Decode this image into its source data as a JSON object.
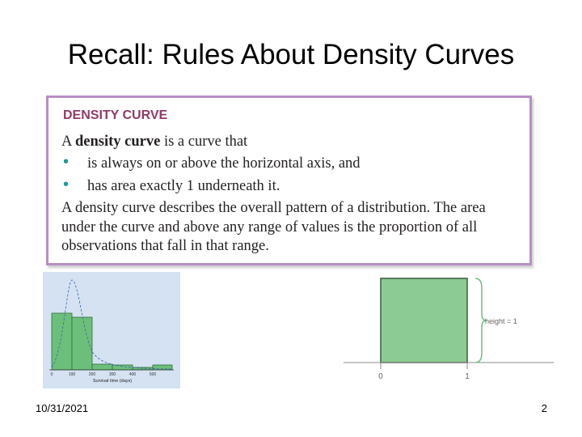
{
  "header": {
    "title": "Recall: Rules About Density Curves"
  },
  "box": {
    "heading": "DENSITY CURVE",
    "definition": {
      "lead": "A ",
      "term": "density curve",
      "rest": " is a curve that"
    },
    "bullets": [
      "is always on or above the horizontal axis, and",
      "has area exactly 1 underneath it."
    ],
    "paragraph_lines": [
      "A density curve describes the overall pattern of a distribution. The area",
      "under the curve and above any range of values is the proportion of all",
      "observations that fall in that range."
    ]
  },
  "histogram": {
    "x_ticks": [
      "0",
      "100",
      "200",
      "300",
      "400",
      "500"
    ],
    "x_label": "Survival time (days)"
  },
  "uniform": {
    "height_label": "height = 1",
    "x_ticks": [
      "0",
      "1"
    ]
  },
  "footer": {
    "date": "10/31/2021",
    "page": "2"
  }
}
